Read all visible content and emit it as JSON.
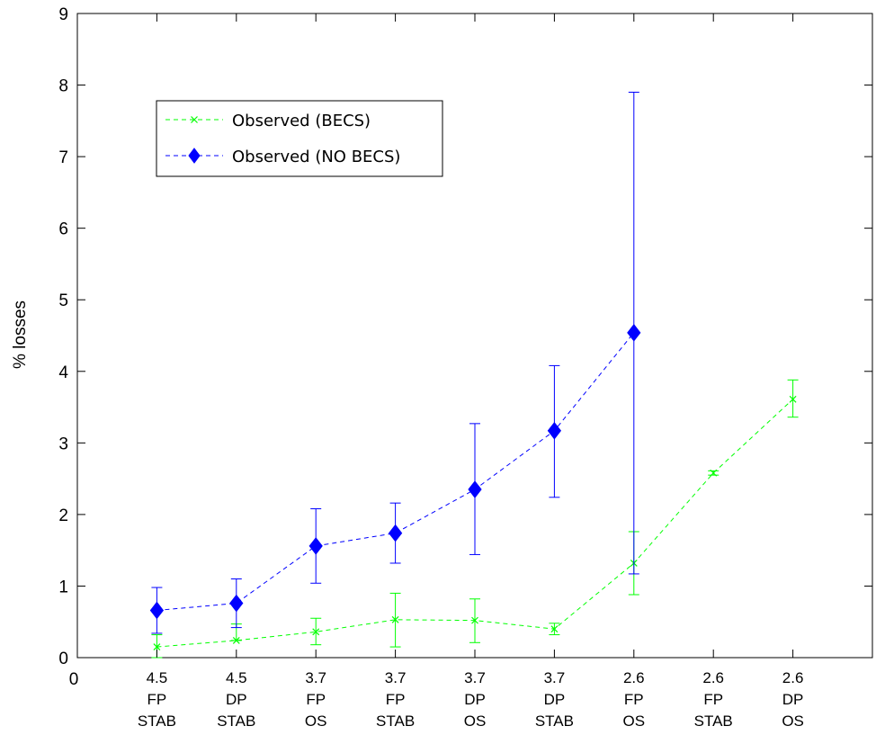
{
  "chart_data": {
    "type": "line",
    "title": "",
    "xlabel": "",
    "ylabel": "% losses",
    "ylim": [
      0,
      9
    ],
    "yticks": [
      0,
      1,
      2,
      3,
      4,
      5,
      6,
      7,
      8,
      9
    ],
    "y_tick_labels": [
      "0",
      "1",
      "2",
      "3",
      "4",
      "5",
      "6",
      "7",
      "8",
      "9"
    ],
    "xlim": [
      0,
      10
    ],
    "x_origin_label": "0",
    "categories": [
      [
        "4.5",
        "FP",
        "STAB"
      ],
      [
        "4.5",
        "DP",
        "STAB"
      ],
      [
        "3.7",
        "FP",
        "OS"
      ],
      [
        "3.7",
        "FP",
        "STAB"
      ],
      [
        "3.7",
        "DP",
        "OS"
      ],
      [
        "3.7",
        "DP",
        "STAB"
      ],
      [
        "2.6",
        "FP",
        "OS"
      ],
      [
        "2.6",
        "FP",
        "STAB"
      ],
      [
        "2.6",
        "DP",
        "OS"
      ]
    ],
    "grid": false,
    "legend_position": "top-left",
    "series": [
      {
        "name": "Observed (BECS)",
        "color": "#00ff00",
        "marker": "x",
        "line_style": "dashed",
        "x": [
          1,
          2,
          3,
          4,
          5,
          6,
          7,
          8,
          9
        ],
        "values": [
          0.15,
          0.24,
          0.36,
          0.53,
          0.52,
          0.4,
          1.32,
          2.58,
          3.61
        ],
        "err_low": [
          0.0,
          0.24,
          0.18,
          0.15,
          0.21,
          0.32,
          0.88,
          2.55,
          3.36
        ],
        "err_high": [
          0.32,
          0.47,
          0.55,
          0.9,
          0.82,
          0.48,
          1.76,
          2.61,
          3.88
        ]
      },
      {
        "name": "Observed (NO BECS)",
        "color": "#0000ff",
        "marker": "diamond",
        "line_style": "dashed",
        "x": [
          1,
          2,
          3,
          4,
          5,
          6,
          7
        ],
        "values": [
          0.66,
          0.76,
          1.56,
          1.74,
          2.35,
          3.17,
          4.54
        ],
        "err_low": [
          0.34,
          0.42,
          1.04,
          1.32,
          1.44,
          2.24,
          1.17
        ],
        "err_high": [
          0.98,
          1.1,
          2.08,
          2.16,
          3.27,
          4.08,
          7.9
        ]
      }
    ]
  }
}
